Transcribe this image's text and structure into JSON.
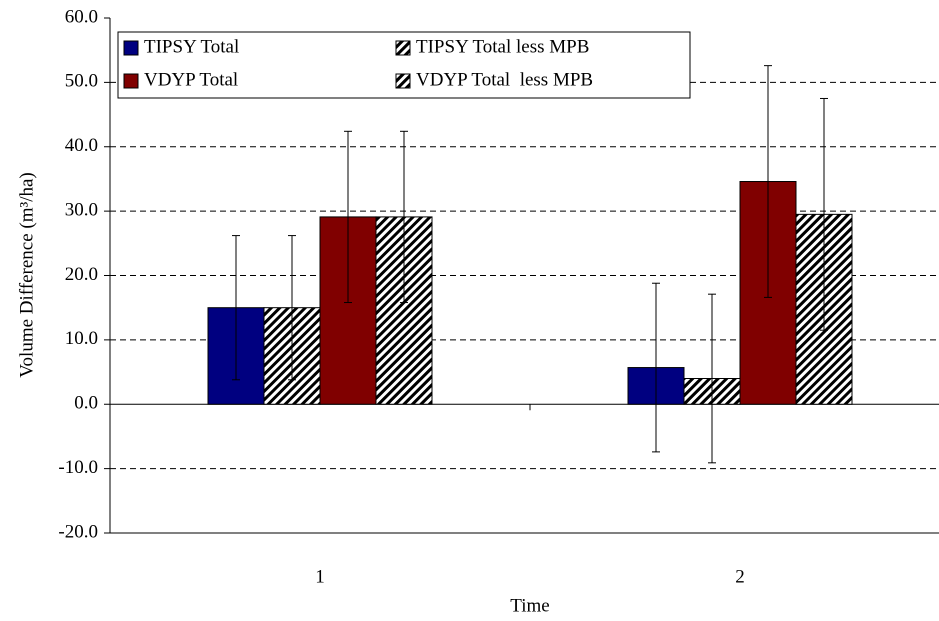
{
  "chart_data": {
    "type": "bar",
    "ylabel": "Volume Difference (m³/ha)",
    "xlabel": "Time",
    "categories": [
      "1",
      "2"
    ],
    "series": [
      {
        "name": "TIPSY Total",
        "color": "#000080",
        "values": [
          15.0,
          5.7
        ],
        "errors": [
          11.2,
          13.1
        ]
      },
      {
        "name": "TIPSY Total less MPB",
        "color": "#000000",
        "pattern": "hatch",
        "values": [
          15.0,
          4.0
        ],
        "errors": [
          11.2,
          13.1
        ]
      },
      {
        "name": "VDYP Total",
        "color": "#800000",
        "values": [
          29.1,
          34.6
        ],
        "errors": [
          13.3,
          18.0
        ]
      },
      {
        "name": "VDYP Total  less MPB",
        "color": "#000000",
        "pattern": "hatch",
        "values": [
          29.1,
          29.5
        ],
        "errors": [
          13.3,
          18.0
        ]
      }
    ],
    "ylim": [
      -20,
      60
    ],
    "yticks": [
      {
        "value": -20,
        "label": "-20.0"
      },
      {
        "value": -10,
        "label": "-10.0"
      },
      {
        "value": 0,
        "label": "0.0"
      },
      {
        "value": 10,
        "label": "10.0"
      },
      {
        "value": 20,
        "label": "20.0"
      },
      {
        "value": 30,
        "label": "30.0"
      },
      {
        "value": 40,
        "label": "40.0"
      },
      {
        "value": 50,
        "label": "50.0"
      },
      {
        "value": 60,
        "label": "60.0"
      }
    ],
    "grid": true,
    "legend": "top-left"
  }
}
